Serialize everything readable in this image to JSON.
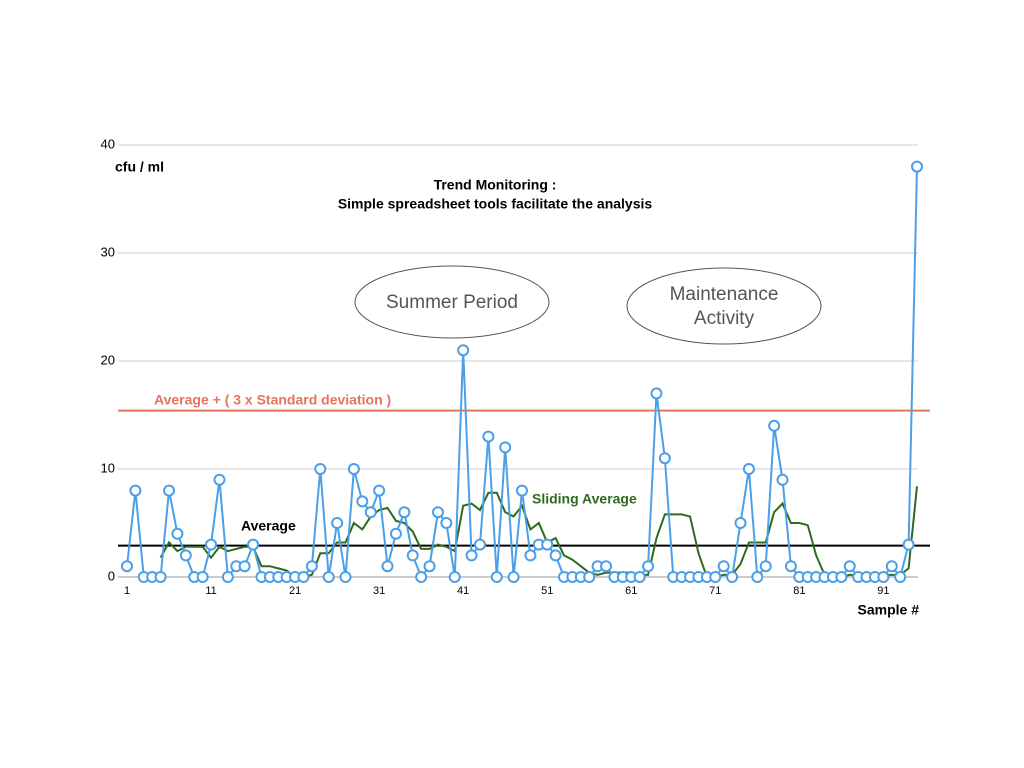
{
  "chart_data": {
    "type": "line",
    "title": [
      "Trend Monitoring :",
      "Simple spreadsheet tools facilitate the analysis"
    ],
    "y_label": "cfu / ml",
    "x_label": "Sample #",
    "annotations": [
      [
        "Summer Period"
      ],
      [
        "Maintenance",
        "Activity"
      ]
    ],
    "x": [
      1,
      2,
      3,
      4,
      5,
      6,
      7,
      8,
      9,
      10,
      11,
      12,
      13,
      14,
      15,
      16,
      17,
      18,
      19,
      20,
      21,
      22,
      23,
      24,
      25,
      26,
      27,
      28,
      29,
      30,
      31,
      32,
      33,
      34,
      35,
      36,
      37,
      38,
      39,
      40,
      41,
      42,
      43,
      44,
      45,
      46,
      47,
      48,
      49,
      50,
      51,
      52,
      53,
      54,
      55,
      56,
      57,
      58,
      59,
      60,
      61,
      62,
      63,
      64,
      65,
      66,
      67,
      68,
      69,
      70,
      71,
      72,
      73,
      74,
      75,
      76,
      77,
      78,
      79,
      80,
      81,
      82,
      83,
      84,
      85,
      86,
      87,
      88,
      89,
      90,
      91,
      92,
      93,
      94,
      95
    ],
    "series": [
      {
        "name": "Samples",
        "color": "#4a9fe8",
        "markers": true,
        "values": [
          1,
          8,
          0,
          0,
          0,
          8,
          4,
          2,
          0,
          0,
          3,
          9,
          0,
          1,
          1,
          3,
          0,
          0,
          0,
          0,
          0,
          0,
          1,
          10,
          0,
          5,
          0,
          10,
          7,
          6,
          8,
          1,
          4,
          6,
          2,
          0,
          1,
          6,
          5,
          0,
          21,
          2,
          3,
          13,
          0,
          12,
          0,
          8,
          2,
          3,
          3,
          2,
          0,
          0,
          0,
          0,
          1,
          1,
          0,
          0,
          0,
          0,
          1,
          17,
          11,
          0,
          0,
          0,
          0,
          0,
          0,
          1,
          0,
          5,
          10,
          0,
          1,
          14,
          9,
          1,
          0,
          0,
          0,
          0,
          0,
          0,
          1,
          0,
          0,
          0,
          0,
          1,
          0,
          3,
          38
        ]
      },
      {
        "name": "Sliding Average",
        "color": "#2e6b1e",
        "markers": false,
        "values": [
          null,
          null,
          null,
          null,
          1.8,
          3.2,
          2.4,
          2.8,
          2.8,
          2.8,
          1.8,
          2.8,
          2.4,
          2.6,
          2.8,
          2.8,
          1.0,
          1.0,
          0.8,
          0.6,
          0,
          0,
          0.2,
          2.2,
          2.2,
          3.2,
          3.2,
          5.0,
          4.4,
          5.6,
          6.2,
          6.4,
          5.2,
          5.0,
          4.2,
          2.6,
          2.6,
          3.0,
          2.8,
          2.4,
          6.6,
          6.8,
          6.2,
          7.8,
          7.8,
          6.0,
          5.6,
          6.6,
          4.4,
          5.0,
          3.2,
          3.6,
          2.0,
          1.6,
          1.0,
          0.4,
          0.2,
          0.4,
          0.4,
          0.4,
          0.4,
          0.2,
          0.2,
          3.6,
          5.8,
          5.8,
          5.8,
          5.6,
          2.2,
          0,
          0,
          0.2,
          0.2,
          1.2,
          3.2,
          3.2,
          3.2,
          6.0,
          6.8,
          5.0,
          5.0,
          4.8,
          2.0,
          0.2,
          0,
          0,
          0.2,
          0.2,
          0.2,
          0.2,
          0.2,
          0.2,
          0.2,
          0.8,
          8.4
        ]
      }
    ],
    "reference_lines": [
      {
        "label": "Average + ( 3 x Standard deviation )",
        "value": 15.4,
        "color": "#e8735a"
      },
      {
        "label": "Average",
        "value": 2.9,
        "color": "#000000"
      }
    ],
    "xlim": [
      1,
      95
    ],
    "xticks": [
      1,
      11,
      21,
      31,
      41,
      51,
      61,
      71,
      81,
      91
    ],
    "ylim": [
      0,
      40
    ],
    "yticks": [
      0,
      10,
      20,
      30,
      40
    ],
    "grid": true
  }
}
